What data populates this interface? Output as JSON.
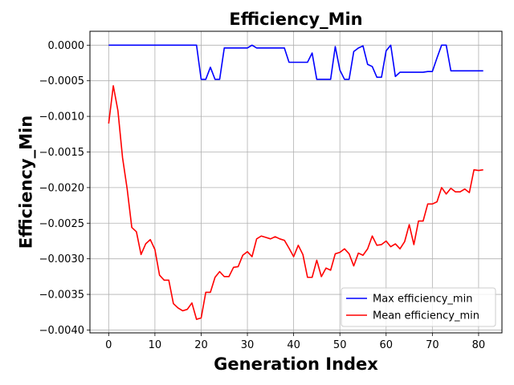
{
  "chart_data": {
    "type": "line",
    "title": "Efficiency_Min",
    "xlabel": "Generation Index",
    "ylabel": "Efficiency_Min",
    "xlim": [
      -4.05,
      85.05
    ],
    "ylim": [
      -0.00404,
      0.000195
    ],
    "xticks": [
      0,
      10,
      20,
      30,
      40,
      50,
      60,
      70,
      80
    ],
    "xtick_labels": [
      "0",
      "10",
      "20",
      "30",
      "40",
      "50",
      "60",
      "70",
      "80"
    ],
    "yticks": [
      0.0,
      -0.0005,
      -0.001,
      -0.0015,
      -0.002,
      -0.0025,
      -0.003,
      -0.0035,
      -0.004
    ],
    "ytick_labels": [
      "0.0000",
      "−0.0005",
      "−0.0010",
      "−0.0015",
      "−0.0020",
      "−0.0025",
      "−0.0030",
      "−0.0035",
      "−0.0040"
    ],
    "grid": true,
    "legend_position": "lower right",
    "x": [
      0,
      1,
      2,
      3,
      4,
      5,
      6,
      7,
      8,
      9,
      10,
      11,
      12,
      13,
      14,
      15,
      16,
      17,
      18,
      19,
      20,
      21,
      22,
      23,
      24,
      25,
      26,
      27,
      28,
      29,
      30,
      31,
      32,
      33,
      34,
      35,
      36,
      37,
      38,
      39,
      40,
      41,
      42,
      43,
      44,
      45,
      46,
      47,
      48,
      49,
      50,
      51,
      52,
      53,
      54,
      55,
      56,
      57,
      58,
      59,
      60,
      61,
      62,
      63,
      64,
      65,
      66,
      67,
      68,
      69,
      70,
      71,
      72,
      73,
      74,
      75,
      76,
      77,
      78,
      79,
      80,
      81
    ],
    "series": [
      {
        "name": "Max efficiency_min",
        "color": "#0000ff",
        "values": [
          0,
          0,
          0,
          0,
          0,
          0,
          0,
          0,
          0,
          0,
          0,
          0,
          0,
          0,
          0,
          0,
          0,
          0,
          0,
          0,
          -0.00048,
          -0.00048,
          -0.00031,
          -0.00048,
          -0.00048,
          -4e-05,
          -4e-05,
          -4e-05,
          -4e-05,
          -4e-05,
          -4e-05,
          0,
          -4e-05,
          -4e-05,
          -4e-05,
          -4e-05,
          -4e-05,
          -4e-05,
          -4e-05,
          -0.00024,
          -0.00024,
          -0.00024,
          -0.00024,
          -0.00024,
          -0.00011,
          -0.00048,
          -0.00048,
          -0.00048,
          -0.00048,
          -2e-05,
          -0.00035,
          -0.00048,
          -0.00048,
          -9e-05,
          -4e-05,
          -1e-05,
          -0.00027,
          -0.0003,
          -0.00045,
          -0.00045,
          -8e-05,
          0,
          -0.00044,
          -0.00038,
          -0.00038,
          -0.00038,
          -0.00038,
          -0.00038,
          -0.00038,
          -0.00037,
          -0.00037,
          -0.00018,
          0,
          0,
          -0.00036,
          -0.00036,
          -0.00036,
          -0.00036,
          -0.00036,
          -0.00036,
          -0.00036,
          -0.00036
        ]
      },
      {
        "name": "Mean efficiency_min",
        "color": "#ff0000",
        "values": [
          -0.0011,
          -0.00057,
          -0.00092,
          -0.00158,
          -0.00202,
          -0.00256,
          -0.00262,
          -0.00294,
          -0.00279,
          -0.00273,
          -0.00287,
          -0.00323,
          -0.0033,
          -0.0033,
          -0.00363,
          -0.00369,
          -0.00373,
          -0.00371,
          -0.00362,
          -0.00385,
          -0.00383,
          -0.00347,
          -0.00347,
          -0.00326,
          -0.00318,
          -0.00325,
          -0.00325,
          -0.00312,
          -0.00311,
          -0.00295,
          -0.0029,
          -0.00297,
          -0.00272,
          -0.00268,
          -0.0027,
          -0.00272,
          -0.00269,
          -0.00272,
          -0.00274,
          -0.00285,
          -0.00297,
          -0.00281,
          -0.00294,
          -0.00326,
          -0.00326,
          -0.00302,
          -0.00325,
          -0.00313,
          -0.00316,
          -0.00293,
          -0.00291,
          -0.00286,
          -0.00293,
          -0.0031,
          -0.00292,
          -0.00295,
          -0.00286,
          -0.00268,
          -0.00281,
          -0.0028,
          -0.00275,
          -0.00283,
          -0.00279,
          -0.00286,
          -0.00276,
          -0.00252,
          -0.0028,
          -0.00247,
          -0.00247,
          -0.00223,
          -0.00223,
          -0.0022,
          -0.002,
          -0.00209,
          -0.00201,
          -0.00206,
          -0.00206,
          -0.00202,
          -0.00207,
          -0.00175,
          -0.00176,
          -0.00175
        ]
      }
    ]
  }
}
